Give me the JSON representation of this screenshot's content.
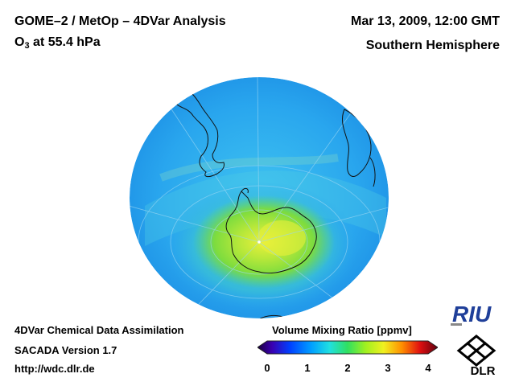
{
  "header": {
    "title": "GOME–2 / MetOp – 4DVar Analysis",
    "species": "O",
    "species_sub": "3",
    "level": " at 55.4 hPa",
    "datetime": "Mar 13, 2009, 12:00 GMT",
    "region": "Southern Hemisphere"
  },
  "footer": {
    "line1": "4DVar Chemical Data Assimilation",
    "line2": "SACADA Version 1.7",
    "line3": "http://wdc.dlr.de"
  },
  "colorbar": {
    "title": "Volume Mixing Ratio [ppmv]",
    "ticks": [
      "0",
      "1",
      "2",
      "3",
      "4"
    ],
    "range": [
      0,
      4
    ]
  },
  "logos": {
    "riu": "RIU",
    "dlr": "DLR"
  },
  "colors": {
    "ocean_blue": "#2aa6ee",
    "polar_green": "#7ee03c",
    "max_yellow": "#e8f03a"
  }
}
